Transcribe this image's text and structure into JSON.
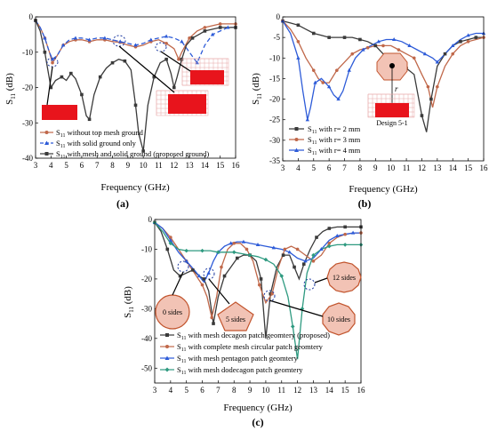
{
  "colors": {
    "black": "#3a3a3a",
    "orange": "#c0684a",
    "blue": "#2d5bd8",
    "green": "#2e9a80",
    "red": "#e8141c",
    "pink": "#e98a8a",
    "grid_pink": "#e7a6a6",
    "oct_fill": "#f2c3b5",
    "oct_stroke": "#c2552e"
  },
  "chart_data": [
    {
      "id": "a",
      "type": "line",
      "panel_label": "(a)",
      "xlabel": "Frequency (GHz)",
      "ylabel": "S11 (dB)",
      "xlim": [
        3,
        16
      ],
      "ylim": [
        -40,
        0
      ],
      "xticks": [
        "3",
        "4",
        "5",
        "6",
        "7",
        "8",
        "9",
        "10",
        "11",
        "12",
        "13",
        "14",
        "15",
        "16"
      ],
      "yticks": [
        "0",
        "-10",
        "-20",
        "-30",
        "-40"
      ],
      "legend_position": "bottom-center",
      "series": [
        {
          "name": "S11 without top mesh ground",
          "color_key": "orange",
          "marker": "circle",
          "dash": "",
          "x": [
            3,
            3.3,
            3.6,
            3.9,
            4.1,
            4.4,
            4.8,
            5.2,
            5.6,
            6,
            6.5,
            7,
            7.5,
            8,
            8.5,
            9,
            9.5,
            10,
            10.5,
            11,
            11.5,
            12,
            12.3,
            12.5,
            13,
            13.5,
            14,
            14.5,
            15,
            15.5,
            16
          ],
          "y": [
            -1,
            -3,
            -6,
            -10,
            -13,
            -11,
            -8,
            -7,
            -6.5,
            -6.5,
            -7,
            -6.5,
            -6.5,
            -7,
            -7.2,
            -8,
            -8.5,
            -8,
            -7,
            -6.5,
            -7.5,
            -9,
            -12,
            -10,
            -6,
            -4,
            -3,
            -2.5,
            -2,
            -2,
            -2
          ]
        },
        {
          "name": "S11 with solid ground only",
          "color_key": "blue",
          "marker": "triangle",
          "dash": "5,3",
          "x": [
            3,
            3.3,
            3.6,
            3.9,
            4.1,
            4.4,
            4.8,
            5.2,
            5.6,
            6,
            6.5,
            7,
            7.5,
            8,
            8.5,
            9,
            9.5,
            10,
            10.5,
            11,
            11.5,
            12,
            12.5,
            13,
            13.5,
            14,
            14.5,
            15,
            15.5,
            16
          ],
          "y": [
            -1,
            -3,
            -6,
            -10,
            -12,
            -11,
            -8,
            -6.5,
            -6,
            -6,
            -6.5,
            -6,
            -6,
            -6.5,
            -7,
            -7.5,
            -8,
            -7.5,
            -6.5,
            -6,
            -5.5,
            -6,
            -7,
            -10,
            -13,
            -8,
            -5,
            -4,
            -3,
            -3
          ]
        },
        {
          "name": "S11 with mesh and solid ground (proposed ground)",
          "color_key": "black",
          "marker": "square",
          "dash": "",
          "x": [
            3,
            3.3,
            3.6,
            3.8,
            4,
            4.3,
            4.7,
            5,
            5.3,
            5.6,
            6,
            6.3,
            6.5,
            6.8,
            7.2,
            7.6,
            8,
            8.4,
            8.8,
            9.2,
            9.5,
            9.7,
            10,
            10.3,
            10.7,
            11.1,
            11.5,
            11.8,
            12,
            12.2,
            12.5,
            12.8,
            13.2,
            13.6,
            14,
            14.5,
            15,
            15.5,
            16
          ],
          "y": [
            -1,
            -4,
            -10,
            -15,
            -20,
            -18,
            -17,
            -18,
            -16,
            -17.5,
            -22,
            -28,
            -29,
            -22,
            -17,
            -14.5,
            -13,
            -12,
            -12.5,
            -15,
            -25,
            -33,
            -38,
            -25,
            -17,
            -13,
            -12,
            -16,
            -20,
            -17,
            -12,
            -8,
            -6,
            -5,
            -4,
            -3.5,
            -3,
            -3,
            -3
          ]
        }
      ]
    },
    {
      "id": "b",
      "type": "line",
      "panel_label": "(b)",
      "xlabel": "Frequency (GHz)",
      "ylabel": "S11 (dB)",
      "xlim": [
        3,
        16
      ],
      "ylim": [
        -35,
        0
      ],
      "xticks": [
        "3",
        "4",
        "5",
        "6",
        "7",
        "8",
        "9",
        "10",
        "11",
        "12",
        "13",
        "14",
        "15",
        "16"
      ],
      "yticks": [
        "0",
        "-5",
        "-10",
        "-15",
        "-20",
        "-25",
        "-30",
        "-35"
      ],
      "legend_position": "bottom-left",
      "annotation": "Design 5-1",
      "series": [
        {
          "name": "S11 with r= 2 mm",
          "color_key": "black",
          "marker": "square",
          "dash": "",
          "x": [
            3,
            3.5,
            4,
            4.5,
            5,
            5.5,
            6,
            6.5,
            7,
            7.5,
            8,
            8.5,
            9,
            9.5,
            10,
            10.5,
            11,
            11.5,
            12,
            12.3,
            12.6,
            13,
            13.5,
            14,
            14.5,
            15,
            15.5,
            16
          ],
          "y": [
            -1,
            -1.5,
            -2,
            -3,
            -4,
            -4.5,
            -5,
            -5,
            -5,
            -5,
            -5.5,
            -6,
            -7,
            -9,
            -11,
            -12,
            -12.5,
            -14,
            -24,
            -28,
            -20,
            -12,
            -9,
            -7,
            -6,
            -5.5,
            -5,
            -5
          ]
        },
        {
          "name": "S11 with r= 3 mm",
          "color_key": "orange",
          "marker": "circle",
          "dash": "",
          "x": [
            3,
            3.5,
            4,
            4.5,
            5,
            5.3,
            5.6,
            6,
            6.5,
            7,
            7.5,
            8,
            8.5,
            9,
            9.5,
            10,
            10.5,
            11,
            11.5,
            12,
            12.4,
            12.7,
            13,
            13.5,
            14,
            14.5,
            15,
            15.5,
            16
          ],
          "y": [
            -1,
            -3,
            -6,
            -10,
            -13,
            -15,
            -16,
            -16,
            -13,
            -11,
            -9,
            -8,
            -7.5,
            -7,
            -7,
            -7,
            -8,
            -9,
            -10,
            -14,
            -17,
            -22,
            -17,
            -12,
            -9,
            -7,
            -6,
            -5.5,
            -5
          ]
        },
        {
          "name": "S11 with r= 4 mm",
          "color_key": "blue",
          "marker": "triangle",
          "dash": "",
          "x": [
            3,
            3.5,
            4,
            4.3,
            4.6,
            4.8,
            5.1,
            5.5,
            6,
            6.3,
            6.6,
            6.9,
            7.3,
            7.7,
            8.2,
            8.7,
            9.2,
            9.7,
            10.2,
            10.7,
            11.2,
            11.7,
            12.2,
            12.7,
            13,
            13.5,
            14,
            14.5,
            15,
            15.5,
            16
          ],
          "y": [
            -1,
            -4,
            -10,
            -18,
            -25,
            -22,
            -16,
            -15,
            -17,
            -19,
            -20,
            -18,
            -13,
            -10,
            -8,
            -7,
            -6,
            -5.5,
            -5.5,
            -6,
            -7,
            -8,
            -9,
            -10,
            -11,
            -9,
            -7,
            -5.5,
            -4.5,
            -4,
            -4
          ]
        }
      ]
    },
    {
      "id": "c",
      "type": "line",
      "panel_label": "(c)",
      "xlabel": "Frequency (GHz)",
      "ylabel": "S11 (dB)",
      "xlim": [
        3,
        16
      ],
      "ylim": [
        -55,
        0
      ],
      "xticks": [
        "3",
        "4",
        "5",
        "6",
        "7",
        "8",
        "9",
        "10",
        "11",
        "12",
        "13",
        "14",
        "15",
        "16"
      ],
      "yticks": [
        "0",
        "-10",
        "-20",
        "-30",
        "-40",
        "-50"
      ],
      "legend_position": "bottom",
      "shape_labels": [
        "0 sides",
        "5 sides",
        "10 sides",
        "12 sides"
      ],
      "series": [
        {
          "name": "S11 with mesh decagon patch geomtery (proposed)",
          "color_key": "black",
          "marker": "square",
          "dash": "",
          "x": [
            3,
            3.4,
            3.8,
            4.2,
            4.6,
            5,
            5.4,
            5.8,
            6.1,
            6.4,
            6.7,
            7,
            7.4,
            7.8,
            8.2,
            8.6,
            9,
            9.4,
            9.7,
            10,
            10.3,
            10.7,
            11.1,
            11.5,
            11.8,
            12.1,
            12.4,
            12.8,
            13.2,
            13.6,
            14,
            14.5,
            15,
            15.5,
            16
          ],
          "y": [
            -1,
            -4,
            -10,
            -17,
            -19,
            -18,
            -17,
            -19,
            -20,
            -24,
            -35,
            -26,
            -19,
            -16,
            -13,
            -12,
            -12,
            -14,
            -20,
            -40,
            -25,
            -16,
            -12,
            -12,
            -16,
            -20,
            -15,
            -10,
            -6,
            -4,
            -3,
            -2.5,
            -2.5,
            -2.5,
            -2.5
          ]
        },
        {
          "name": "S11 with complete mesh circular patch geomtery",
          "color_key": "orange",
          "marker": "circle",
          "dash": "",
          "x": [
            3,
            3.5,
            4,
            4.5,
            5,
            5.5,
            6,
            6.3,
            6.6,
            6.9,
            7.2,
            7.6,
            8,
            8.4,
            8.8,
            9.2,
            9.6,
            10,
            10.4,
            10.8,
            11.2,
            11.6,
            12,
            12.5,
            13,
            13.5,
            14,
            14.5,
            15,
            15.5,
            16
          ],
          "y": [
            -1,
            -3,
            -6,
            -10,
            -14,
            -18,
            -22,
            -26,
            -33,
            -26,
            -16,
            -10,
            -8,
            -8,
            -10,
            -14,
            -22,
            -28,
            -25,
            -16,
            -10,
            -9,
            -10,
            -12,
            -14,
            -12,
            -8,
            -6,
            -5,
            -4.5,
            -4.5
          ]
        },
        {
          "name": "S11 with mesh pentagon patch geomtery",
          "color_key": "blue",
          "marker": "triangle",
          "dash": "",
          "x": [
            3,
            3.5,
            4,
            4.5,
            5,
            5.5,
            5.8,
            6.1,
            6.4,
            6.7,
            7,
            7.4,
            7.8,
            8.2,
            8.6,
            9,
            9.5,
            10,
            10.5,
            11,
            11.5,
            12,
            12.5,
            13,
            13.5,
            14,
            14.5,
            15,
            15.5,
            16
          ],
          "y": [
            -1,
            -3,
            -7,
            -11,
            -14,
            -17,
            -19,
            -21,
            -18,
            -14,
            -11,
            -9,
            -8,
            -7.5,
            -7.5,
            -8,
            -8.5,
            -9,
            -9.5,
            -10,
            -11,
            -13,
            -14,
            -13,
            -10,
            -7,
            -5.5,
            -5,
            -4.5,
            -4.5
          ]
        },
        {
          "name": "S11 with mesh dodecagon patch geomtery",
          "color_key": "green",
          "marker": "diamond",
          "dash": "",
          "x": [
            3,
            3.5,
            4,
            4.5,
            5,
            5.5,
            6,
            6.5,
            7,
            7.5,
            8,
            8.5,
            9,
            9.5,
            10,
            10.5,
            11,
            11.4,
            11.7,
            12,
            12.3,
            12.6,
            13,
            13.5,
            14,
            14.5,
            15,
            15.5,
            16
          ],
          "y": [
            -1,
            -4,
            -8,
            -10,
            -10.5,
            -10.5,
            -10.5,
            -10.5,
            -11,
            -11,
            -11,
            -11.5,
            -12,
            -12.5,
            -13.5,
            -15,
            -19,
            -26,
            -36,
            -47,
            -30,
            -18,
            -12,
            -10,
            -9,
            -8.5,
            -8.5,
            -8.5,
            -8.5
          ]
        }
      ]
    }
  ]
}
